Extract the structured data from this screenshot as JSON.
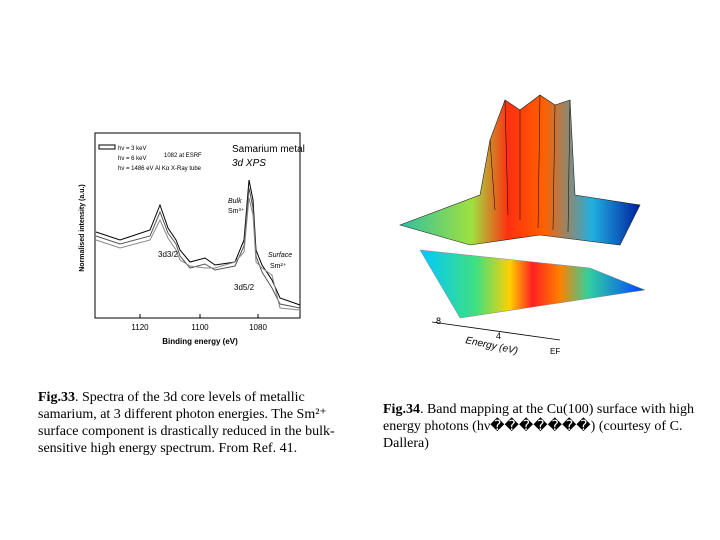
{
  "figures": [
    {
      "label": "Fig.33",
      "caption": ". Spectra of the 3d core levels of metallic samarium, at 3 different photon energies. The Sm²⁺ surface component is drastically reduced in the bulk-sensitive high energy spectrum. From Ref. 41.",
      "plot": {
        "title": "Samarium metal",
        "subtitle": "3d XPS",
        "legend": [
          "hν = 3 keV",
          "hν = 6 keV",
          "hν = 1486 eV  Al Kα X-Ray tube"
        ],
        "legend_note": "1082 at ESRF",
        "y_label": "Normalised intensity (a.u.)",
        "x_label": "Binding energy (eV)",
        "x_ticks": [
          "1120",
          "1100",
          "1080"
        ],
        "annotations": [
          "Bulk",
          "Sm³⁺",
          "3d3/2",
          "3d5/2",
          "Surface",
          "Sm²⁺"
        ]
      }
    },
    {
      "label": "Fig.34",
      "caption": ". Band mapping at the Cu(100) surface with high energy photons (hν�������) (courtesy of C. Dallera)",
      "plot": {
        "axis_ticks": [
          "8",
          "4",
          "EF"
        ],
        "axis_label": "Energy (eV)"
      }
    }
  ]
}
